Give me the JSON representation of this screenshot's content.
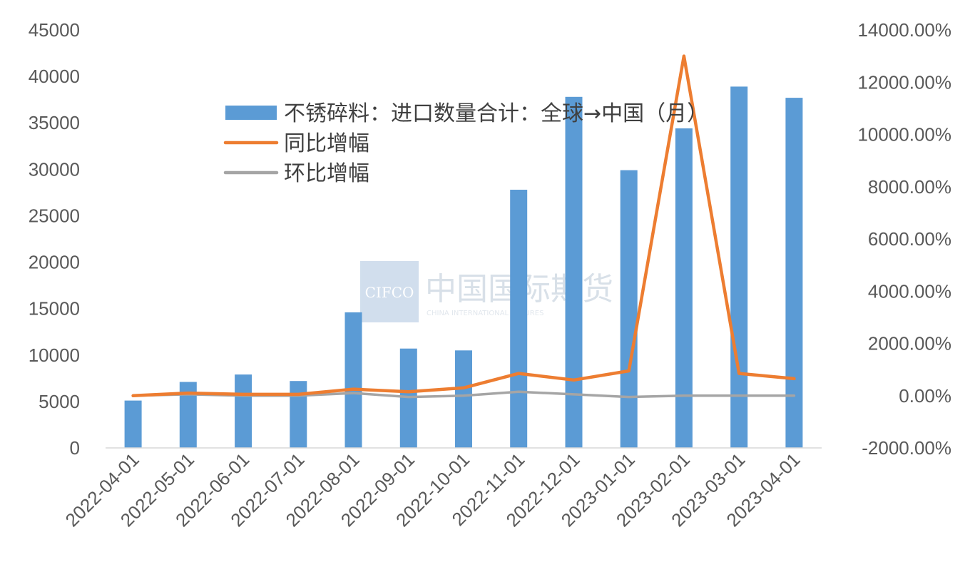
{
  "colors": {
    "bar": "#5b9bd5",
    "yoy": "#ed7d31",
    "mom": "#a5a5a5",
    "axis": "#d9d9d9",
    "text": "#595959"
  },
  "watermark": {
    "logo": "CIFCO",
    "name": "中国国际期货",
    "sub": "CHINA INTERNATIONAL FUTURES"
  },
  "chart_data": {
    "type": "bar",
    "categories": [
      "2022-04-01",
      "2022-05-01",
      "2022-06-01",
      "2022-07-01",
      "2022-08-01",
      "2022-09-01",
      "2022-10-01",
      "2022-11-01",
      "2022-12-01",
      "2023-01-01",
      "2023-02-01",
      "2023-03-01",
      "2023-04-01"
    ],
    "series": [
      {
        "name": "不锈碎料：进口数量合计：全球→中国（月）",
        "type": "bar",
        "axis": "left",
        "values": [
          5100,
          7100,
          7900,
          7200,
          14600,
          10700,
          10500,
          27800,
          37800,
          29900,
          34400,
          38900,
          37700
        ]
      },
      {
        "name": "同比增幅",
        "type": "line",
        "axis": "right",
        "values": [
          0,
          100,
          50,
          50,
          250,
          150,
          300,
          850,
          600,
          950,
          13000,
          850,
          650
        ]
      },
      {
        "name": "环比增幅",
        "type": "line",
        "axis": "right",
        "values": [
          0,
          50,
          0,
          0,
          100,
          -50,
          0,
          150,
          50,
          -50,
          0,
          0,
          0
        ]
      }
    ],
    "y_left": {
      "min": 0,
      "max": 45000,
      "ticks": [
        "0",
        "5000",
        "10000",
        "15000",
        "20000",
        "25000",
        "30000",
        "35000",
        "40000",
        "45000"
      ]
    },
    "y_right": {
      "min": -2000,
      "max": 14000,
      "ticks": [
        "-2000.00%",
        "0.00%",
        "2000.00%",
        "4000.00%",
        "6000.00%",
        "8000.00%",
        "10000.00%",
        "12000.00%",
        "14000.00%"
      ]
    },
    "grid": false,
    "legend_position": "top-center"
  }
}
